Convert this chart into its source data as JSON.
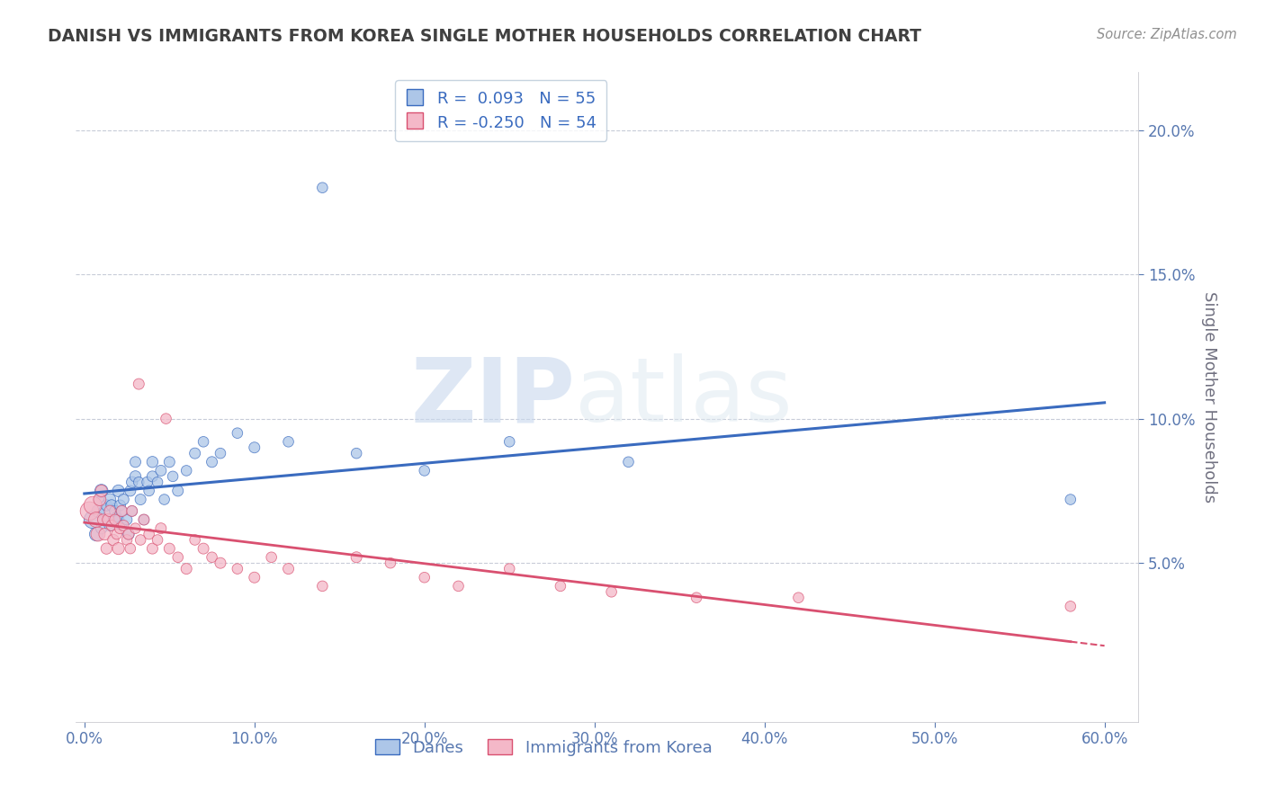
{
  "title": "DANISH VS IMMIGRANTS FROM KOREA SINGLE MOTHER HOUSEHOLDS CORRELATION CHART",
  "source": "Source: ZipAtlas.com",
  "xlabel_danes": "Danes",
  "xlabel_korea": "Immigrants from Korea",
  "ylabel": "Single Mother Households",
  "watermark_zip": "ZIP",
  "watermark_atlas": "atlas",
  "legend_danes_R": " 0.093",
  "legend_danes_N": "55",
  "legend_korea_R": "-0.250",
  "legend_korea_N": "54",
  "xlim": [
    -0.005,
    0.62
  ],
  "ylim": [
    -0.005,
    0.22
  ],
  "yticks": [
    0.05,
    0.1,
    0.15,
    0.2
  ],
  "ytick_labels": [
    "5.0%",
    "10.0%",
    "15.0%",
    "20.0%"
  ],
  "xticks": [
    0.0,
    0.1,
    0.2,
    0.3,
    0.4,
    0.5,
    0.6
  ],
  "xtick_labels": [
    "0.0%",
    "10.0%",
    "20.0%",
    "30.0%",
    "40.0%",
    "50.0%",
    "60.0%"
  ],
  "danes_color": "#adc6e8",
  "korea_color": "#f4b8c8",
  "danes_line_color": "#3a6bbf",
  "korea_line_color": "#d95070",
  "background_color": "#ffffff",
  "grid_color": "#c8ccd8",
  "title_color": "#404040",
  "axis_label_color": "#707080",
  "tick_color": "#5878b0",
  "source_color": "#909090",
  "danes_x": [
    0.005,
    0.007,
    0.008,
    0.009,
    0.01,
    0.01,
    0.012,
    0.013,
    0.014,
    0.015,
    0.015,
    0.016,
    0.017,
    0.018,
    0.019,
    0.02,
    0.02,
    0.021,
    0.022,
    0.022,
    0.023,
    0.025,
    0.026,
    0.027,
    0.028,
    0.028,
    0.03,
    0.03,
    0.032,
    0.033,
    0.035,
    0.037,
    0.038,
    0.04,
    0.04,
    0.043,
    0.045,
    0.047,
    0.05,
    0.052,
    0.055,
    0.06,
    0.065,
    0.07,
    0.075,
    0.08,
    0.09,
    0.1,
    0.12,
    0.14,
    0.16,
    0.2,
    0.25,
    0.32,
    0.58
  ],
  "danes_y": [
    0.065,
    0.06,
    0.068,
    0.072,
    0.075,
    0.062,
    0.068,
    0.07,
    0.065,
    0.063,
    0.072,
    0.07,
    0.065,
    0.068,
    0.066,
    0.075,
    0.065,
    0.07,
    0.068,
    0.063,
    0.072,
    0.065,
    0.06,
    0.075,
    0.078,
    0.068,
    0.08,
    0.085,
    0.078,
    0.072,
    0.065,
    0.078,
    0.075,
    0.08,
    0.085,
    0.078,
    0.082,
    0.072,
    0.085,
    0.08,
    0.075,
    0.082,
    0.088,
    0.092,
    0.085,
    0.088,
    0.095,
    0.09,
    0.092,
    0.18,
    0.088,
    0.082,
    0.092,
    0.085,
    0.072
  ],
  "danes_sizes": [
    200,
    120,
    100,
    90,
    110,
    80,
    90,
    80,
    70,
    80,
    90,
    80,
    70,
    80,
    70,
    90,
    80,
    75,
    70,
    70,
    75,
    70,
    80,
    75,
    80,
    70,
    80,
    75,
    70,
    75,
    70,
    75,
    70,
    75,
    80,
    70,
    75,
    70,
    75,
    70,
    75,
    70,
    75,
    70,
    75,
    70,
    70,
    75,
    70,
    70,
    70,
    70,
    70,
    70,
    70
  ],
  "korea_x": [
    0.003,
    0.005,
    0.007,
    0.008,
    0.009,
    0.01,
    0.011,
    0.012,
    0.013,
    0.014,
    0.015,
    0.016,
    0.017,
    0.018,
    0.019,
    0.02,
    0.021,
    0.022,
    0.023,
    0.025,
    0.026,
    0.027,
    0.028,
    0.03,
    0.032,
    0.033,
    0.035,
    0.038,
    0.04,
    0.043,
    0.045,
    0.048,
    0.05,
    0.055,
    0.06,
    0.065,
    0.07,
    0.075,
    0.08,
    0.09,
    0.1,
    0.11,
    0.12,
    0.14,
    0.16,
    0.18,
    0.2,
    0.22,
    0.25,
    0.28,
    0.31,
    0.36,
    0.42,
    0.58
  ],
  "korea_y": [
    0.068,
    0.07,
    0.065,
    0.06,
    0.072,
    0.075,
    0.065,
    0.06,
    0.055,
    0.065,
    0.068,
    0.063,
    0.058,
    0.065,
    0.06,
    0.055,
    0.062,
    0.068,
    0.063,
    0.058,
    0.06,
    0.055,
    0.068,
    0.062,
    0.112,
    0.058,
    0.065,
    0.06,
    0.055,
    0.058,
    0.062,
    0.1,
    0.055,
    0.052,
    0.048,
    0.058,
    0.055,
    0.052,
    0.05,
    0.048,
    0.045,
    0.052,
    0.048,
    0.042,
    0.052,
    0.05,
    0.045,
    0.042,
    0.048,
    0.042,
    0.04,
    0.038,
    0.038,
    0.035
  ],
  "korea_sizes": [
    220,
    200,
    150,
    130,
    100,
    90,
    80,
    90,
    80,
    90,
    80,
    75,
    80,
    75,
    70,
    90,
    75,
    80,
    75,
    70,
    75,
    70,
    75,
    70,
    75,
    70,
    75,
    70,
    75,
    70,
    75,
    70,
    75,
    70,
    75,
    70,
    75,
    70,
    75,
    70,
    75,
    70,
    75,
    70,
    75,
    70,
    70,
    70,
    70,
    70,
    70,
    70,
    70,
    70
  ]
}
